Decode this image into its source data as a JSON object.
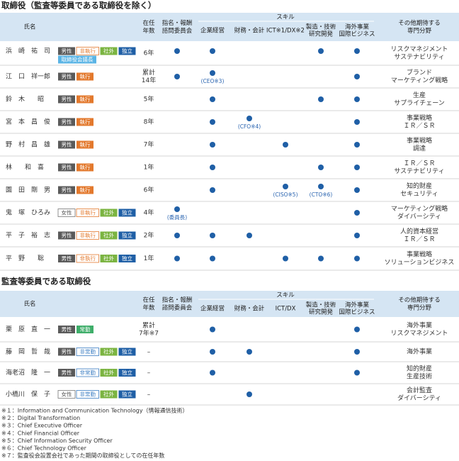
{
  "sections": [
    {
      "title": "取締役（監査等委員である取締役を除く）",
      "header": {
        "name": "氏名",
        "tenure": [
          "在任",
          "年数"
        ],
        "nomination": [
          "指名・報酬",
          "諮問委員会"
        ],
        "skill": "スキル",
        "skills": [
          [
            "企業経営"
          ],
          [
            "財務・会計"
          ],
          [
            "ICT※1/DX※2"
          ],
          [
            "製造・技術",
            "研究開発"
          ],
          [
            "海外事業",
            "国際ビジネス"
          ]
        ],
        "other": [
          "その他期待する",
          "専門分野"
        ]
      },
      "rows": [
        {
          "name": "浜　崎　祐　司",
          "tags": [
            {
              "text": "男性",
              "kind": "dark"
            },
            {
              "text": "非執行",
              "kind": "o-orange"
            },
            {
              "text": "社外",
              "kind": "green"
            },
            {
              "text": "独立",
              "kind": "blue"
            }
          ],
          "tags2": [
            {
              "text": "取締役会議長",
              "kind": "lightblue"
            }
          ],
          "tenure": [
            "6年"
          ],
          "marks": [
            true,
            true,
            false,
            false,
            true,
            true
          ],
          "notes": [
            null,
            null,
            null,
            null,
            null,
            null
          ],
          "other": [
            "リスクマネジメント",
            "サステナビリティ"
          ]
        },
        {
          "name": "江　口　祥一郎",
          "tags": [
            {
              "text": "男性",
              "kind": "dark"
            },
            {
              "text": "執行",
              "kind": "orange"
            }
          ],
          "tenure": [
            "累計",
            "14年"
          ],
          "marks": [
            true,
            true,
            false,
            false,
            false,
            true
          ],
          "notes": [
            null,
            "(CEO※3)",
            null,
            null,
            null,
            null
          ],
          "other": [
            "ブランド",
            "マーケティング戦略"
          ]
        },
        {
          "name": "鈴　木　　昭",
          "tags": [
            {
              "text": "男性",
              "kind": "dark"
            },
            {
              "text": "執行",
              "kind": "orange"
            }
          ],
          "tenure": [
            "5年"
          ],
          "marks": [
            false,
            true,
            false,
            false,
            true,
            true
          ],
          "notes": [
            null,
            null,
            null,
            null,
            null,
            null
          ],
          "other": [
            "生産",
            "サプライチェーン"
          ]
        },
        {
          "name": "宮　本　昌　俊",
          "tags": [
            {
              "text": "男性",
              "kind": "dark"
            },
            {
              "text": "執行",
              "kind": "orange"
            }
          ],
          "tenure": [
            "8年"
          ],
          "marks": [
            false,
            true,
            true,
            false,
            false,
            true
          ],
          "notes": [
            null,
            null,
            "(CFO※4)",
            null,
            null,
            null
          ],
          "other": [
            "事業戦略",
            "ＩＲ／ＳＲ"
          ]
        },
        {
          "name": "野　村　昌　雄",
          "tags": [
            {
              "text": "男性",
              "kind": "dark"
            },
            {
              "text": "執行",
              "kind": "orange"
            }
          ],
          "tenure": [
            "7年"
          ],
          "marks": [
            false,
            true,
            false,
            true,
            false,
            true
          ],
          "notes": [
            null,
            null,
            null,
            null,
            null,
            null
          ],
          "other": [
            "事業戦略",
            "調達"
          ]
        },
        {
          "name": "林　　和　喜",
          "tags": [
            {
              "text": "男性",
              "kind": "dark"
            },
            {
              "text": "執行",
              "kind": "orange"
            }
          ],
          "tenure": [
            "1年"
          ],
          "marks": [
            false,
            true,
            false,
            false,
            true,
            true
          ],
          "notes": [
            null,
            null,
            null,
            null,
            null,
            null
          ],
          "other": [
            "ＩＲ／ＳＲ",
            "サステナビリティ"
          ]
        },
        {
          "name": "園　田　剛　男",
          "tags": [
            {
              "text": "男性",
              "kind": "dark"
            },
            {
              "text": "執行",
              "kind": "orange"
            }
          ],
          "tenure": [
            "6年"
          ],
          "marks": [
            false,
            true,
            false,
            true,
            true,
            true
          ],
          "notes": [
            null,
            null,
            null,
            "(CISO※5)",
            "(CTO※6)",
            null
          ],
          "other": [
            "知的財産",
            "セキュリティ"
          ]
        },
        {
          "name": "鬼　塚　ひろみ",
          "tags": [
            {
              "text": "女性",
              "kind": "o-gray"
            },
            {
              "text": "非執行",
              "kind": "o-orange"
            },
            {
              "text": "社外",
              "kind": "green"
            },
            {
              "text": "独立",
              "kind": "blue"
            }
          ],
          "tenure": [
            "4年"
          ],
          "marks": [
            true,
            false,
            false,
            false,
            false,
            true
          ],
          "notes": [
            "(委員長)",
            null,
            null,
            null,
            null,
            null
          ],
          "other": [
            "マーケティング戦略",
            "ダイバーシティ"
          ]
        },
        {
          "name": "平　子　裕　志",
          "tags": [
            {
              "text": "男性",
              "kind": "dark"
            },
            {
              "text": "非執行",
              "kind": "o-orange"
            },
            {
              "text": "社外",
              "kind": "green"
            },
            {
              "text": "独立",
              "kind": "blue"
            }
          ],
          "tenure": [
            "2年"
          ],
          "marks": [
            true,
            true,
            true,
            false,
            false,
            true
          ],
          "notes": [
            null,
            null,
            null,
            null,
            null,
            null
          ],
          "other": [
            "人的資本経営",
            "ＩＲ／ＳＲ"
          ]
        },
        {
          "name": "平　野　　聡",
          "tags": [
            {
              "text": "男性",
              "kind": "dark"
            },
            {
              "text": "非執行",
              "kind": "o-orange"
            },
            {
              "text": "社外",
              "kind": "green"
            },
            {
              "text": "独立",
              "kind": "blue"
            }
          ],
          "tenure": [
            "1年"
          ],
          "marks": [
            true,
            true,
            false,
            true,
            true,
            true
          ],
          "notes": [
            null,
            null,
            null,
            null,
            null,
            null
          ],
          "other": [
            "事業戦略",
            "ソリューションビジネス"
          ]
        }
      ]
    },
    {
      "title": "監査等委員である取締役",
      "header": {
        "name": "氏名",
        "tenure": [
          "在任",
          "年数"
        ],
        "nomination": [
          "指名・報酬",
          "諮問委員会"
        ],
        "skill": "スキル",
        "skills": [
          [
            "企業経営"
          ],
          [
            "財務・会計"
          ],
          [
            "ICT/DX"
          ],
          [
            "製造・技術",
            "研究開発"
          ],
          [
            "海外事業",
            "国際ビジネス"
          ]
        ],
        "other": [
          "その他期待する",
          "専門分野"
        ]
      },
      "rows": [
        {
          "name": "栗　原　直　一",
          "tags": [
            {
              "text": "男性",
              "kind": "dark"
            },
            {
              "text": "常勤",
              "kind": "teal"
            }
          ],
          "tenure": [
            "累計",
            "7年※7"
          ],
          "marks": [
            false,
            true,
            false,
            false,
            false,
            true
          ],
          "notes": [
            null,
            null,
            null,
            null,
            null,
            null
          ],
          "other": [
            "海外事業",
            "リスクマネジメント"
          ]
        },
        {
          "name": "藤　岡　哲　哉",
          "tags": [
            {
              "text": "男性",
              "kind": "dark"
            },
            {
              "text": "非常勤",
              "kind": "o-blue"
            },
            {
              "text": "社外",
              "kind": "green"
            },
            {
              "text": "独立",
              "kind": "blue"
            }
          ],
          "tenure": [
            "–"
          ],
          "marks": [
            false,
            true,
            true,
            false,
            false,
            true
          ],
          "notes": [
            null,
            null,
            null,
            null,
            null,
            null
          ],
          "other": [
            "海外事業"
          ]
        },
        {
          "name": "海老沼　隆　一",
          "tags": [
            {
              "text": "男性",
              "kind": "dark"
            },
            {
              "text": "非常勤",
              "kind": "o-blue"
            },
            {
              "text": "社外",
              "kind": "green"
            },
            {
              "text": "独立",
              "kind": "blue"
            }
          ],
          "tenure": [
            "–"
          ],
          "marks": [
            false,
            true,
            false,
            false,
            false,
            true
          ],
          "notes": [
            null,
            null,
            null,
            null,
            null,
            null
          ],
          "other": [
            "知的財産",
            "生産技術"
          ]
        },
        {
          "name": "小橋川　保　子",
          "tags": [
            {
              "text": "女性",
              "kind": "o-gray"
            },
            {
              "text": "非常勤",
              "kind": "o-blue"
            },
            {
              "text": "社外",
              "kind": "green"
            },
            {
              "text": "独立",
              "kind": "blue"
            }
          ],
          "tenure": [
            "–"
          ],
          "marks": [
            false,
            false,
            true,
            false,
            false,
            false
          ],
          "notes": [
            null,
            null,
            null,
            null,
            null,
            null
          ],
          "other": [
            "会計監査",
            "ダイバーシティ"
          ]
        }
      ]
    }
  ],
  "footnotes": [
    "※１：Information and Communication Technology（情報通信技術）",
    "※２：Digital Transformation",
    "※３：Chief Executive Officer",
    "※４：Chief Financial Officer",
    "※５：Chief Information Security Officer",
    "※６：Chief Technology Officer",
    "※７：監査役会設置会社であった期間の取締役としての在任年数"
  ]
}
